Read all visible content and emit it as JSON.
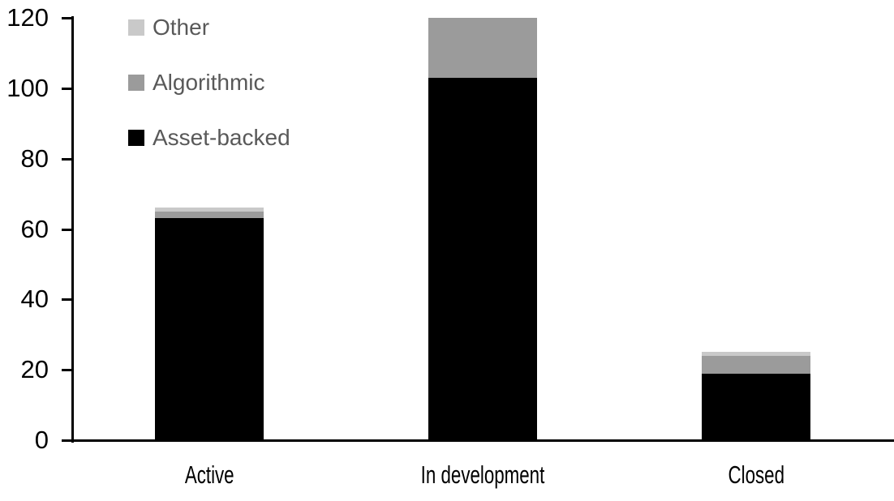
{
  "chart_data": {
    "type": "bar",
    "stacked": true,
    "title": "",
    "xlabel": "",
    "ylabel": "",
    "categories": [
      "Active",
      "In development",
      "Closed"
    ],
    "series": [
      {
        "name": "Asset-backed",
        "color": "#000000",
        "values": [
          63,
          103,
          19
        ]
      },
      {
        "name": "Algorithmic",
        "color": "#9B9B9B",
        "values": [
          2,
          17,
          5
        ]
      },
      {
        "name": "Other",
        "color": "#C9C9C9",
        "values": [
          1,
          0,
          1
        ]
      }
    ],
    "totals": [
      66,
      120,
      25
    ],
    "ylim": [
      0,
      120
    ],
    "ytick_step": 20,
    "yticks": [
      0,
      20,
      40,
      60,
      80,
      100,
      120
    ],
    "grid": false,
    "legend_position": "inside-top-left",
    "legend_order": [
      "Other",
      "Algorithmic",
      "Asset-backed"
    ]
  },
  "styles": {
    "background": "#FFFFFF",
    "axis_color": "#000000",
    "tick_label_color": "#000000",
    "category_label_color": "#000000",
    "legend_text_color": "#595959"
  }
}
